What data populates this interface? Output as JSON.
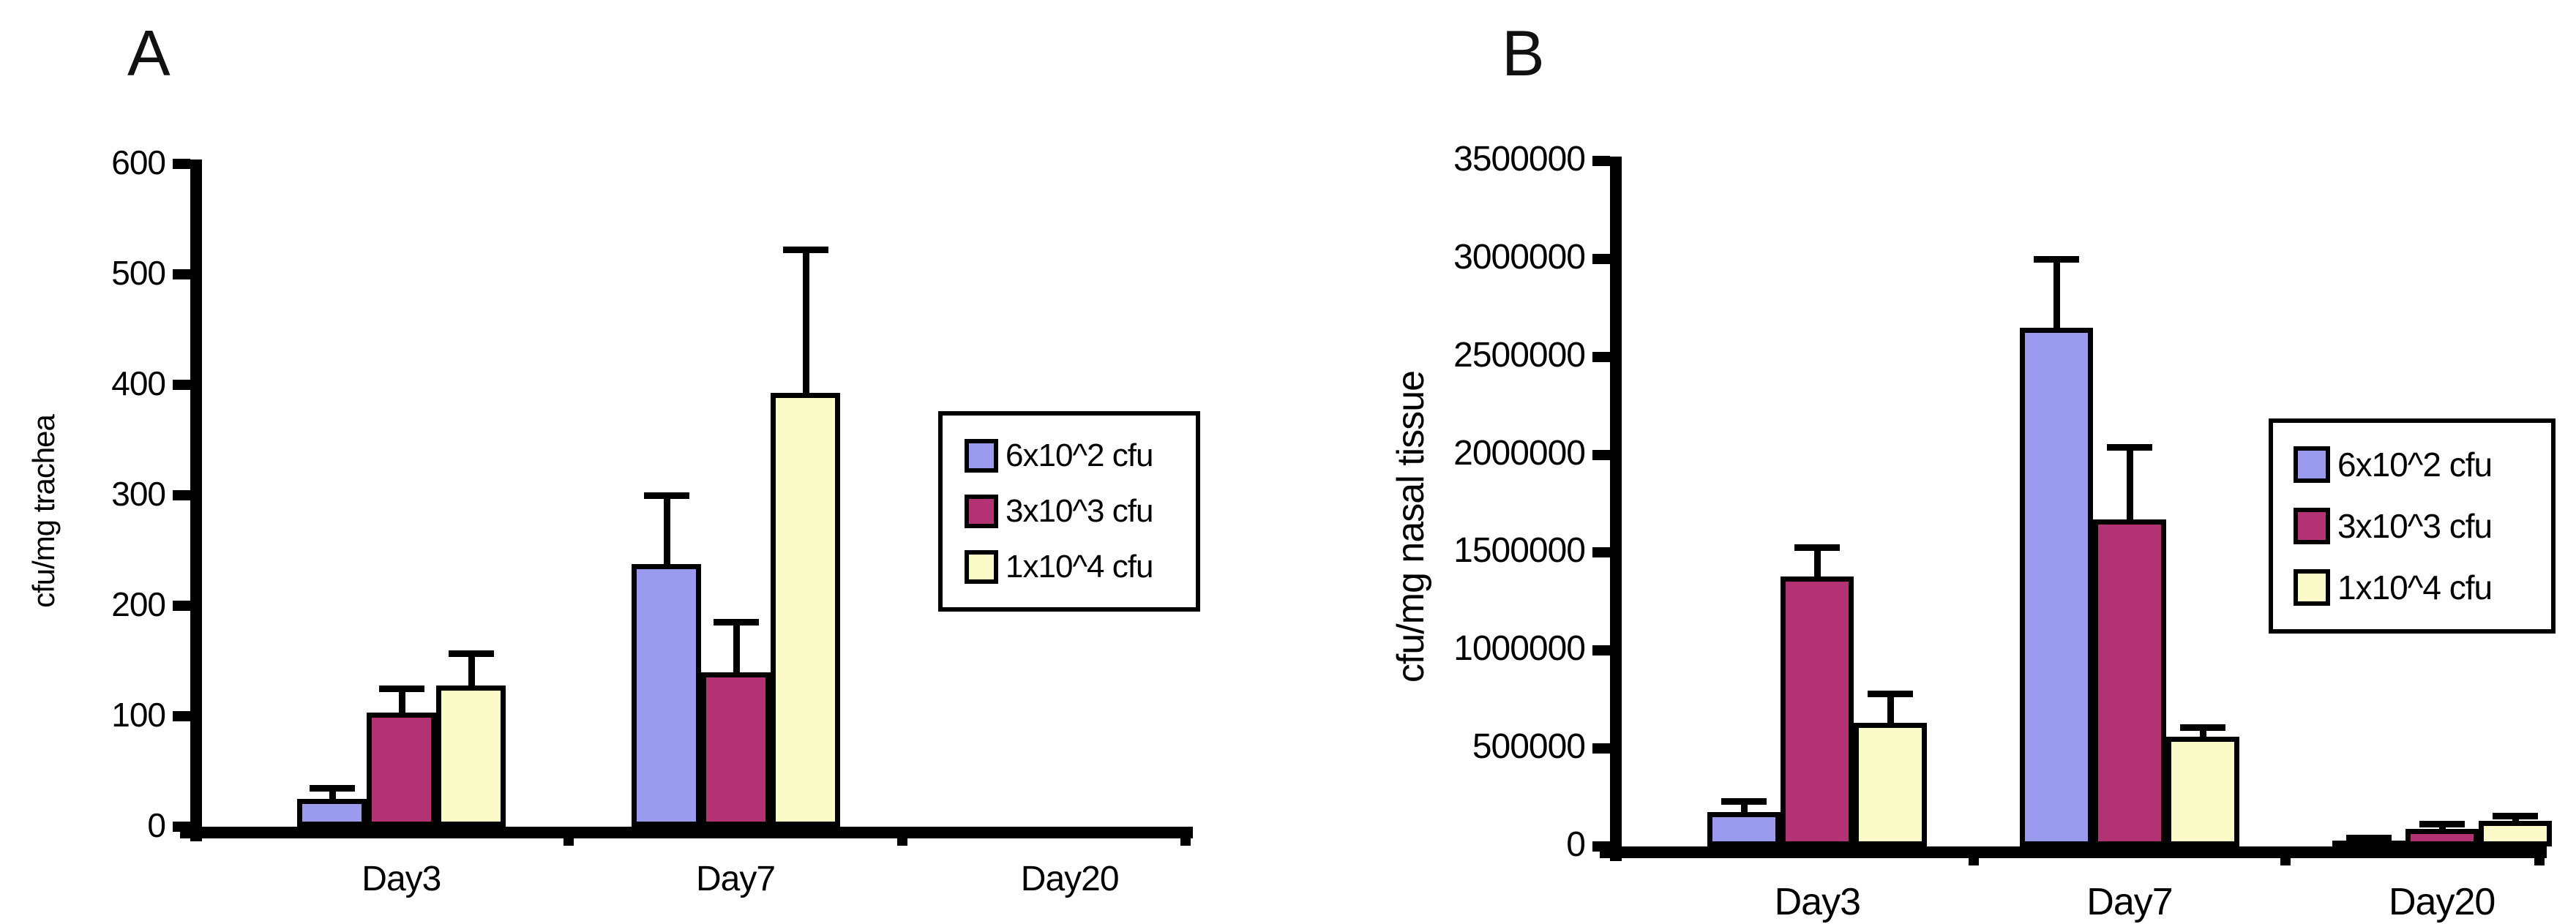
{
  "figure": {
    "background": "#FFFFFF",
    "axis_color": "#000000"
  },
  "chart_data": [
    {
      "type": "bar",
      "panel": "A",
      "title": "",
      "xlabel": "",
      "ylabel": "cfu/mg trachea",
      "ylim": [
        0,
        600
      ],
      "ytick_step": 100,
      "yticks": [
        600,
        500,
        400,
        300,
        200,
        100,
        0
      ],
      "grid": false,
      "categories": [
        "Day3",
        "Day7",
        "Day20"
      ],
      "series": [
        {
          "name": "6x10^2 cfu",
          "color": "#9A9AEF",
          "values": [
            25,
            238,
            0
          ],
          "errors": [
            10,
            62,
            0
          ]
        },
        {
          "name": "3x10^3 cfu",
          "color": "#B23273",
          "values": [
            103,
            140,
            0
          ],
          "errors": [
            22,
            46,
            0
          ]
        },
        {
          "name": "1x10^4 cfu",
          "color": "#FBFBC9",
          "values": [
            128,
            393,
            0
          ],
          "errors": [
            29,
            130,
            0
          ]
        }
      ],
      "legend": {
        "position": "right",
        "entries": [
          "6x10^2 cfu",
          "3x10^3 cfu",
          "1x10^4 cfu"
        ]
      }
    },
    {
      "type": "bar",
      "panel": "B",
      "title": "",
      "xlabel": "",
      "ylabel": "cfu/mg nasal tissue",
      "ylim": [
        0,
        3500000
      ],
      "ytick_step": 500000,
      "yticks": [
        3500000,
        3000000,
        2500000,
        2000000,
        1500000,
        1000000,
        500000,
        0
      ],
      "grid": false,
      "categories": [
        "Day3",
        "Day7",
        "Day20"
      ],
      "series": [
        {
          "name": "6x10^2 cfu",
          "color": "#9A9AEF",
          "values": [
            175000,
            2650000,
            30000
          ],
          "errors": [
            55000,
            350000,
            15000
          ]
        },
        {
          "name": "3x10^3 cfu",
          "color": "#B23273",
          "values": [
            1380000,
            1670000,
            90000
          ],
          "errors": [
            150000,
            370000,
            25000
          ]
        },
        {
          "name": "1x10^4 cfu",
          "color": "#FBFBC9",
          "values": [
            630000,
            560000,
            130000
          ],
          "errors": [
            150000,
            50000,
            25000
          ]
        }
      ],
      "legend": {
        "position": "right",
        "entries": [
          "6x10^2 cfu",
          "3x10^3 cfu",
          "1x10^4 cfu"
        ]
      }
    }
  ]
}
